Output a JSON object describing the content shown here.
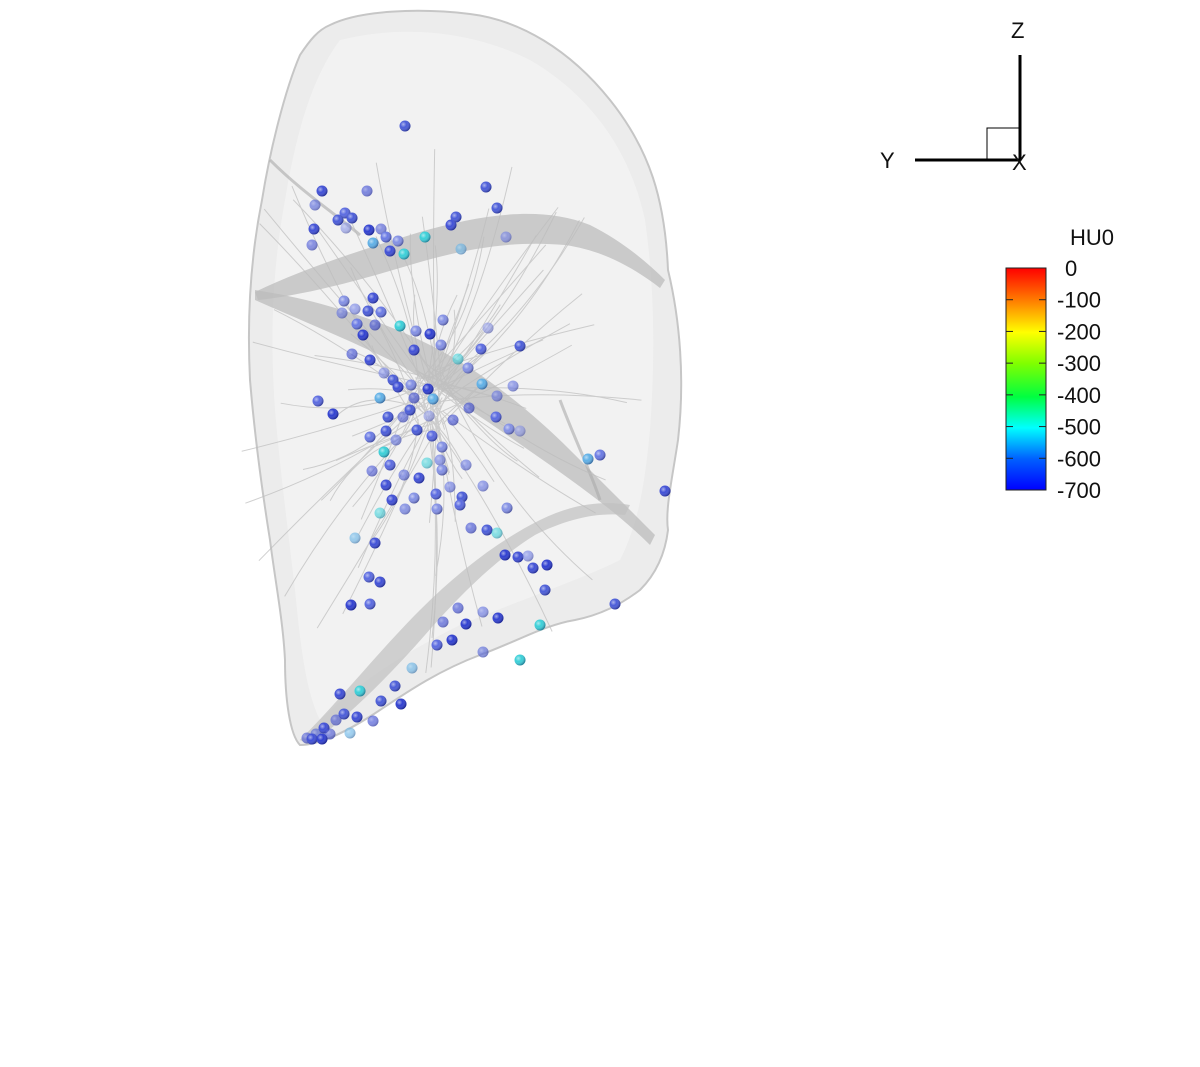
{
  "axes_triad": {
    "z_label": "Z",
    "y_label": "Y",
    "x_label": "X"
  },
  "legend": {
    "title": "HU0",
    "ticks": [
      "0",
      "-100",
      "-200",
      "-300",
      "-400",
      "-500",
      "-600",
      "-700"
    ],
    "range": [
      -700,
      0
    ],
    "colors": [
      "#ff0000",
      "#ff8000",
      "#ffff00",
      "#80ff00",
      "#00ff40",
      "#00ffff",
      "#0060ff",
      "#0000ff"
    ]
  },
  "surface": {
    "fill_color": "#e8e8e8",
    "edge_color": "#bdbdbd",
    "fissure_color": "#a8a8a8"
  },
  "particles": {
    "count_visible": "approx. 200",
    "typical_hu": -650
  }
}
